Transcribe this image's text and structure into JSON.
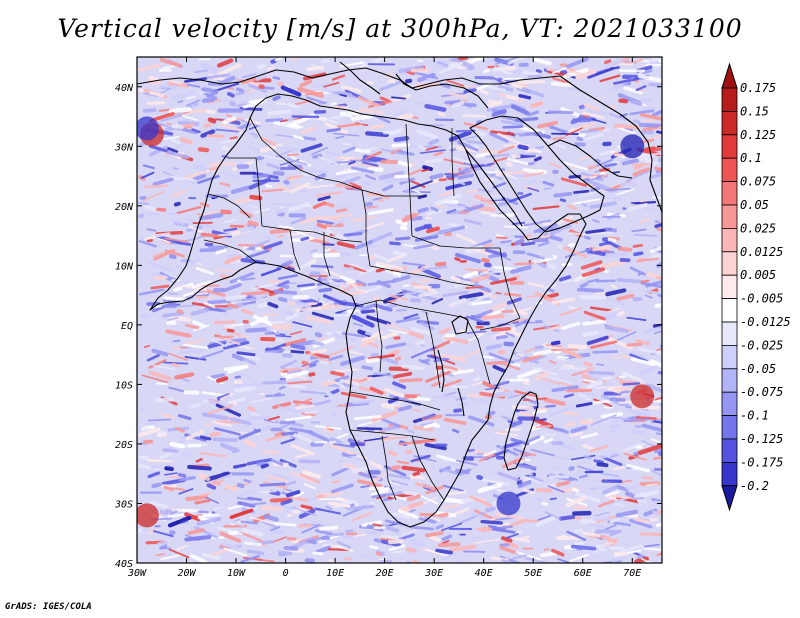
{
  "title": "Vertical velocity [m/s] at 300hPa, VT: 2021033100",
  "credit": "GrADS: IGES/COLA",
  "map": {
    "variable": "Vertical velocity",
    "units": "m/s",
    "level": "300hPa",
    "valid_time": "2021033100",
    "lon_range": [
      -30,
      76
    ],
    "lat_range": [
      -40,
      45
    ],
    "lon_ticks": [
      {
        "value": -30,
        "label": "30W"
      },
      {
        "value": -20,
        "label": "20W"
      },
      {
        "value": -10,
        "label": "10W"
      },
      {
        "value": 0,
        "label": "0"
      },
      {
        "value": 10,
        "label": "10E"
      },
      {
        "value": 20,
        "label": "20E"
      },
      {
        "value": 30,
        "label": "30E"
      },
      {
        "value": 40,
        "label": "40E"
      },
      {
        "value": 50,
        "label": "50E"
      },
      {
        "value": 60,
        "label": "60E"
      },
      {
        "value": 70,
        "label": "70E"
      }
    ],
    "lat_ticks": [
      {
        "value": 40,
        "label": "40N"
      },
      {
        "value": 30,
        "label": "30N"
      },
      {
        "value": 20,
        "label": "20N"
      },
      {
        "value": 10,
        "label": "10N"
      },
      {
        "value": 0,
        "label": "EQ"
      },
      {
        "value": -10,
        "label": "10S"
      },
      {
        "value": -20,
        "label": "20S"
      },
      {
        "value": -30,
        "label": "30S"
      },
      {
        "value": -40,
        "label": "40S"
      }
    ]
  },
  "colorbar": {
    "levels": [
      {
        "label": "0.175",
        "color": "#b71c1c"
      },
      {
        "label": "0.15",
        "color": "#cc2a2a"
      },
      {
        "label": "0.125",
        "color": "#e03a3a"
      },
      {
        "label": "0.1",
        "color": "#ef5555"
      },
      {
        "label": "0.075",
        "color": "#f47777"
      },
      {
        "label": "0.05",
        "color": "#f89797"
      },
      {
        "label": "0.025",
        "color": "#fbb6b6"
      },
      {
        "label": "0.0125",
        "color": "#fdd3d3"
      },
      {
        "label": "0.005",
        "color": "#feeaea"
      },
      {
        "label": "-0.005",
        "color": "#ffffff"
      },
      {
        "label": "-0.0125",
        "color": "#e8e8fd"
      },
      {
        "label": "-0.025",
        "color": "#cfcffb"
      },
      {
        "label": "-0.05",
        "color": "#b3b3f7"
      },
      {
        "label": "-0.075",
        "color": "#9595f2"
      },
      {
        "label": "-0.1",
        "color": "#7575eb"
      },
      {
        "label": "-0.125",
        "color": "#5454e0"
      },
      {
        "label": "-0.175",
        "color": "#3636cc"
      },
      {
        "label": "-0.2",
        "color": "#2020b0"
      }
    ],
    "top_color": "#a01010",
    "bottom_color": "#1a1aa0"
  }
}
